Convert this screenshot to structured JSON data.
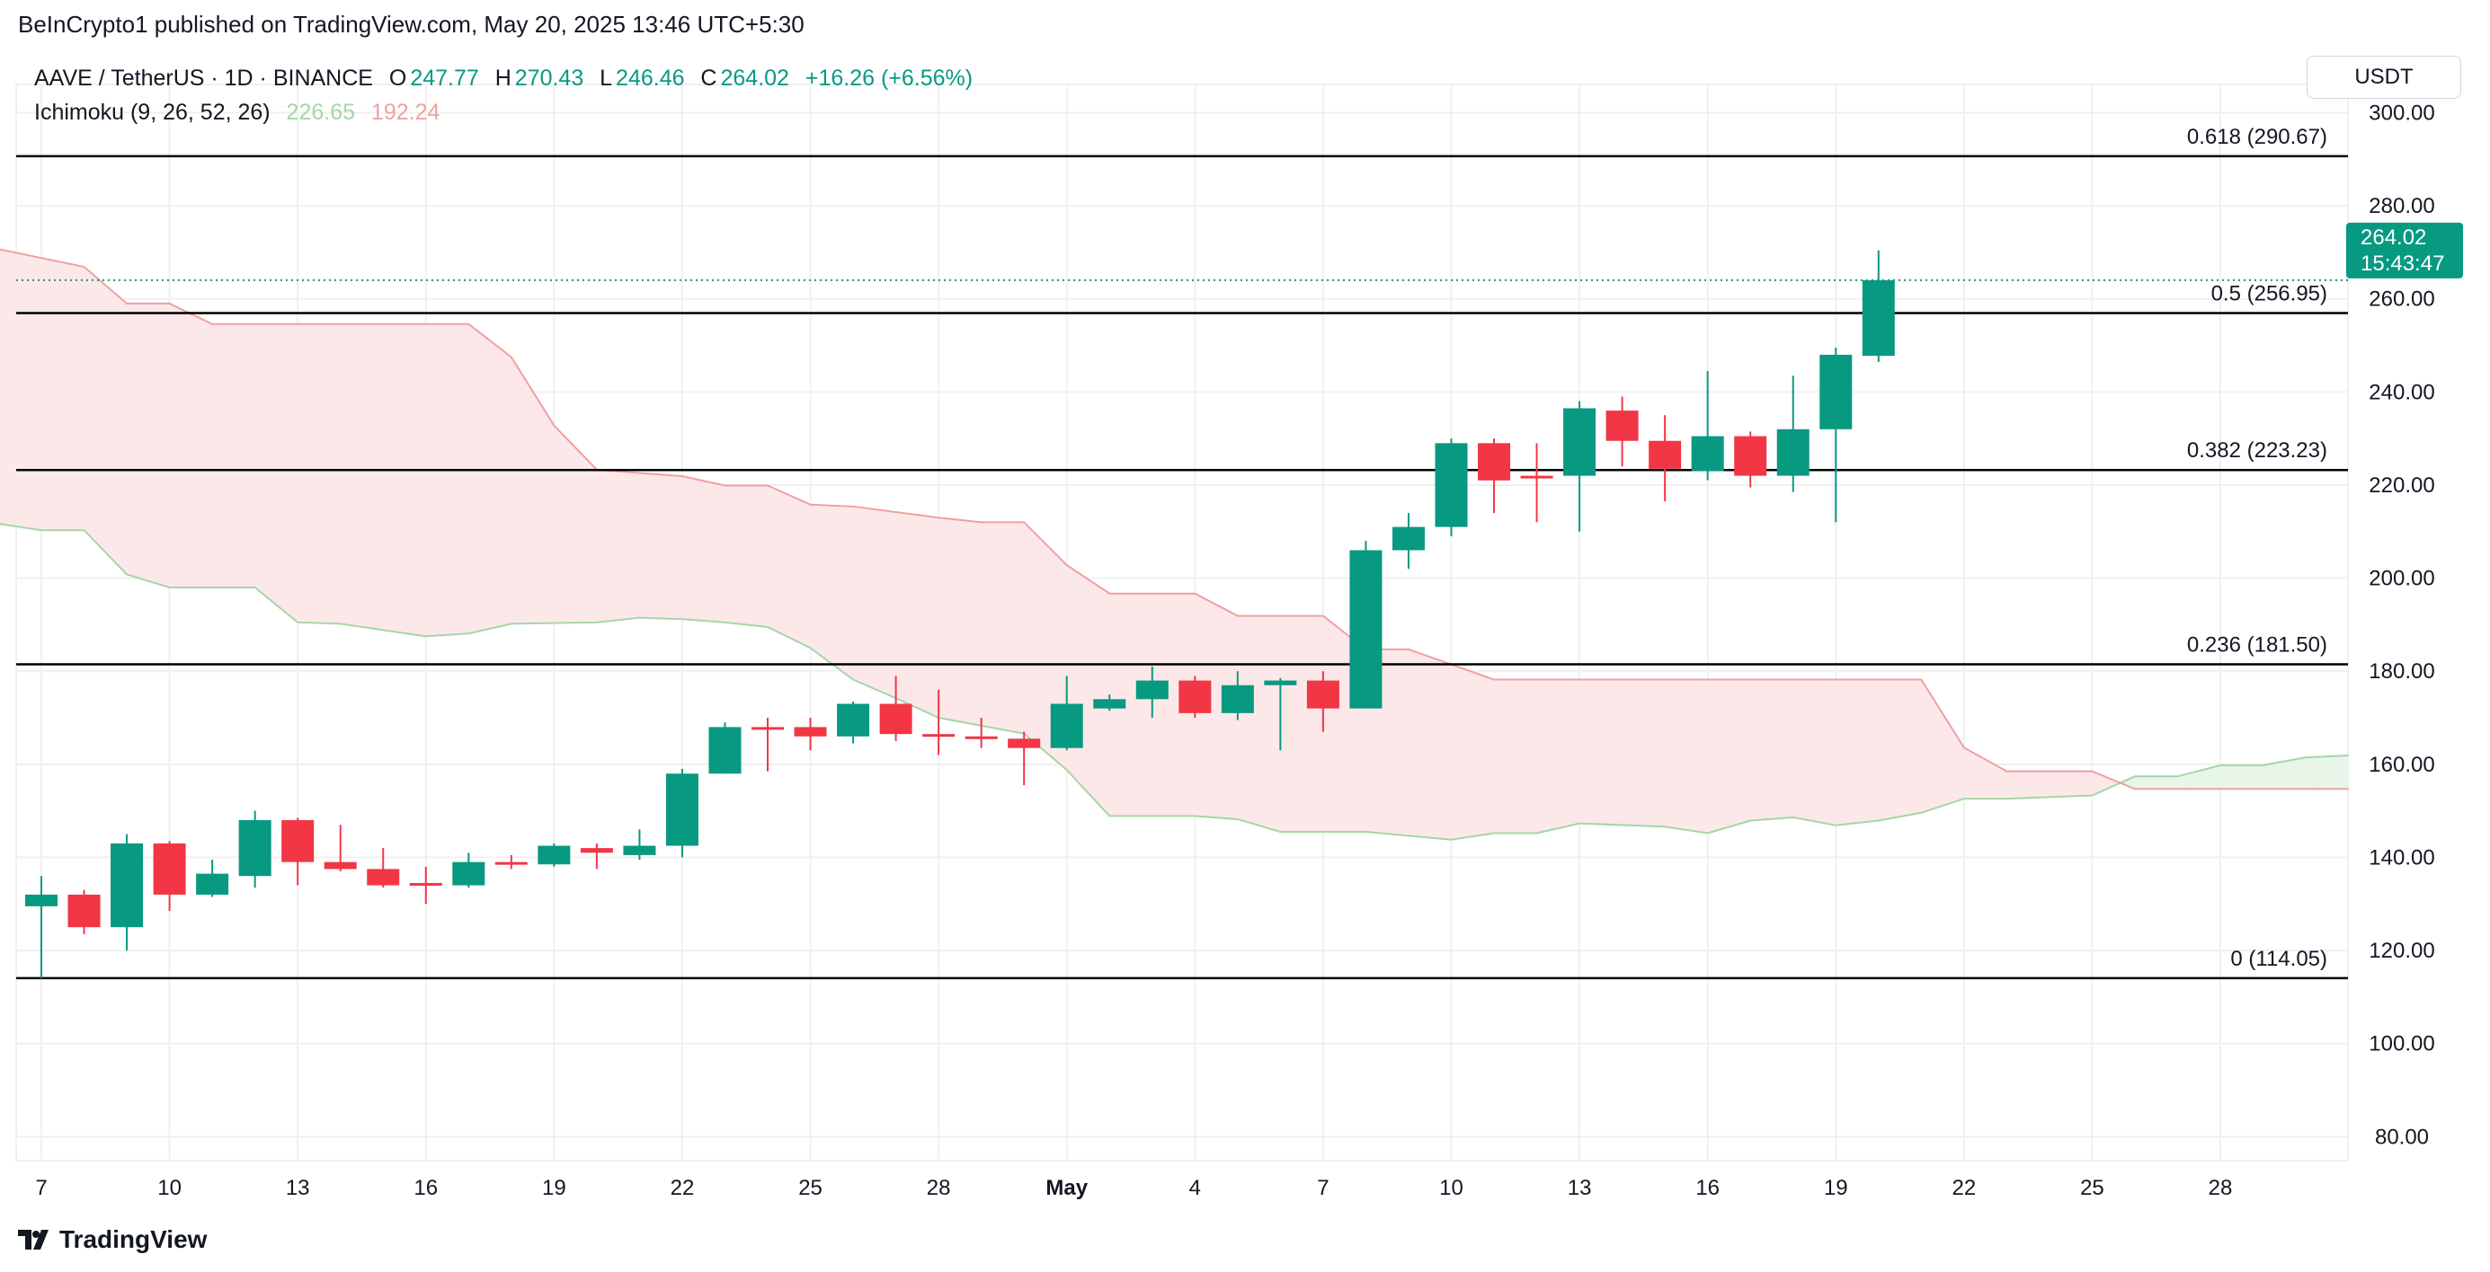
{
  "header": {
    "published": "BeInCrypto1 published on TradingView.com, May 20, 2025 13:46 UTC+5:30",
    "symbol": "AAVE / TetherUS · 1D · BINANCE",
    "o_label": "O",
    "o": "247.77",
    "h_label": "H",
    "h": "270.43",
    "l_label": "L",
    "l": "246.46",
    "c_label": "C",
    "c": "264.02",
    "change": "+16.26 (+6.56%)",
    "indicator": "Ichimoku (9, 26, 52, 26)",
    "ind_a": "226.65",
    "ind_b": "192.24"
  },
  "currency_button": "USDT",
  "price_label": {
    "price": "264.02",
    "countdown": "15:43:47"
  },
  "logo_text": "TradingView",
  "colors": {
    "up": "#089981",
    "down": "#f23645",
    "span_a": "#a5d6a7",
    "span_b": "#f0a0a0",
    "cloud_red": "#fce8e8",
    "cloud_green": "#e8f5e9",
    "grid": "#f0f0f0"
  },
  "chart_data": {
    "type": "candlestick",
    "ylim": [
      72,
      305
    ],
    "y_ticks": [
      "80.00",
      "100.00",
      "120.00",
      "140.00",
      "160.00",
      "180.00",
      "200.00",
      "220.00",
      "240.00",
      "260.00",
      "280.00",
      "300.00"
    ],
    "x_ticks": [
      {
        "date": "2025-04-07",
        "label": "7"
      },
      {
        "date": "2025-04-10",
        "label": "10"
      },
      {
        "date": "2025-04-13",
        "label": "13"
      },
      {
        "date": "2025-04-16",
        "label": "16"
      },
      {
        "date": "2025-04-19",
        "label": "19"
      },
      {
        "date": "2025-04-22",
        "label": "22"
      },
      {
        "date": "2025-04-25",
        "label": "25"
      },
      {
        "date": "2025-04-28",
        "label": "28"
      },
      {
        "date": "2025-05-01",
        "label": "May"
      },
      {
        "date": "2025-05-04",
        "label": "4"
      },
      {
        "date": "2025-05-07",
        "label": "7"
      },
      {
        "date": "2025-05-10",
        "label": "10"
      },
      {
        "date": "2025-05-13",
        "label": "13"
      },
      {
        "date": "2025-05-16",
        "label": "16"
      },
      {
        "date": "2025-05-19",
        "label": "19"
      },
      {
        "date": "2025-05-22",
        "label": "22"
      },
      {
        "date": "2025-05-25",
        "label": "25"
      },
      {
        "date": "2025-05-28",
        "label": "28"
      }
    ],
    "candles_columns": [
      "date",
      "open",
      "high",
      "low",
      "close"
    ],
    "candles": [
      [
        "2025-04-07",
        129.5,
        136,
        114,
        132
      ],
      [
        "2025-04-08",
        132,
        133,
        123.5,
        125
      ],
      [
        "2025-04-09",
        125,
        145,
        120,
        143
      ],
      [
        "2025-04-10",
        143,
        143.5,
        128.5,
        132
      ],
      [
        "2025-04-11",
        132,
        139.5,
        131.5,
        136.5
      ],
      [
        "2025-04-12",
        136,
        150,
        133.5,
        148
      ],
      [
        "2025-04-13",
        148,
        148.5,
        134,
        139
      ],
      [
        "2025-04-14",
        139,
        147,
        137,
        137.5
      ],
      [
        "2025-04-15",
        137.5,
        142,
        133.5,
        134
      ],
      [
        "2025-04-16",
        134.5,
        138,
        130,
        134
      ],
      [
        "2025-04-17",
        134,
        141,
        133.5,
        139
      ],
      [
        "2025-04-18",
        139,
        140.5,
        137.5,
        138.5
      ],
      [
        "2025-04-19",
        138.5,
        143,
        138,
        142.5
      ],
      [
        "2025-04-20",
        142,
        143,
        137.5,
        141
      ],
      [
        "2025-04-21",
        140.5,
        146,
        139.5,
        142.5
      ],
      [
        "2025-04-22",
        142.5,
        159,
        140,
        158
      ],
      [
        "2025-04-23",
        158,
        169,
        158,
        168
      ],
      [
        "2025-04-24",
        168,
        170,
        158.5,
        167.5
      ],
      [
        "2025-04-25",
        168,
        170,
        163,
        166
      ],
      [
        "2025-04-26",
        166,
        173.5,
        164.5,
        173
      ],
      [
        "2025-04-27",
        173,
        179,
        165,
        166.5
      ],
      [
        "2025-04-28",
        166.5,
        176,
        162,
        166
      ],
      [
        "2025-04-29",
        166,
        170,
        163.5,
        165.5
      ],
      [
        "2025-04-30",
        165.5,
        167,
        155.5,
        163.5
      ],
      [
        "2025-05-01",
        163.5,
        179,
        163,
        173
      ],
      [
        "2025-05-02",
        172,
        175,
        171.5,
        174
      ],
      [
        "2025-05-03",
        174,
        181,
        170,
        178
      ],
      [
        "2025-05-04",
        178,
        179,
        170,
        171
      ],
      [
        "2025-05-05",
        171,
        180,
        169.5,
        177
      ],
      [
        "2025-05-06",
        177,
        178.5,
        163,
        178
      ],
      [
        "2025-05-07",
        178,
        180,
        167,
        172
      ],
      [
        "2025-05-08",
        172,
        208,
        172,
        206
      ],
      [
        "2025-05-09",
        206,
        214,
        202,
        211
      ],
      [
        "2025-05-10",
        211,
        230,
        209,
        229
      ],
      [
        "2025-05-11",
        229,
        230,
        214,
        221
      ],
      [
        "2025-05-12",
        222,
        229,
        212,
        221.5
      ],
      [
        "2025-05-13",
        222,
        238,
        210,
        236.5
      ],
      [
        "2025-05-14",
        236,
        239,
        224,
        229.5
      ],
      [
        "2025-05-15",
        229.5,
        235,
        216.5,
        223.5
      ],
      [
        "2025-05-16",
        223,
        244.5,
        221,
        230.5
      ],
      [
        "2025-05-17",
        230.5,
        231.5,
        219.5,
        222
      ],
      [
        "2025-05-18",
        222,
        243.5,
        218.5,
        232
      ],
      [
        "2025-05-19",
        232,
        249.5,
        212,
        248
      ],
      [
        "2025-05-20",
        247.77,
        270.43,
        246.46,
        264.02
      ]
    ],
    "ichimoku": {
      "span_a": [
        [
          "2025-04-06",
          211.7
        ],
        [
          "2025-04-07",
          210.3
        ],
        [
          "2025-04-08",
          210.3
        ],
        [
          "2025-04-09",
          200.8
        ],
        [
          "2025-04-10",
          198
        ],
        [
          "2025-04-12",
          198
        ],
        [
          "2025-04-13",
          190.5
        ],
        [
          "2025-04-14",
          190.2
        ],
        [
          "2025-04-16",
          187.5
        ],
        [
          "2025-04-17",
          188.1
        ],
        [
          "2025-04-18",
          190.2
        ],
        [
          "2025-04-20",
          190.5
        ],
        [
          "2025-04-21",
          191.5
        ],
        [
          "2025-04-22",
          191.2
        ],
        [
          "2025-04-23",
          190.5
        ],
        [
          "2025-04-24",
          189.5
        ],
        [
          "2025-04-25",
          185
        ],
        [
          "2025-04-26",
          178.2
        ],
        [
          "2025-04-27",
          174.2
        ],
        [
          "2025-04-28",
          170
        ],
        [
          "2025-04-30",
          166.6
        ],
        [
          "2025-05-01",
          158.8
        ],
        [
          "2025-05-02",
          148.9
        ],
        [
          "2025-05-04",
          148.9
        ],
        [
          "2025-05-05",
          148.2
        ],
        [
          "2025-05-06",
          145.5
        ],
        [
          "2025-05-08",
          145.5
        ],
        [
          "2025-05-10",
          143.8
        ],
        [
          "2025-05-11",
          145.2
        ],
        [
          "2025-05-12",
          145.2
        ],
        [
          "2025-05-13",
          147.3
        ],
        [
          "2025-05-15",
          146.6
        ],
        [
          "2025-05-16",
          145.2
        ],
        [
          "2025-05-17",
          147.9
        ],
        [
          "2025-05-18",
          148.6
        ],
        [
          "2025-05-19",
          146.9
        ],
        [
          "2025-05-20",
          147.9
        ],
        [
          "2025-05-21",
          149.6
        ],
        [
          "2025-05-22",
          152.6
        ],
        [
          "2025-05-23",
          152.6
        ],
        [
          "2025-05-25",
          153.3
        ],
        [
          "2025-05-26",
          157.4
        ],
        [
          "2025-05-27",
          157.4
        ],
        [
          "2025-05-28",
          159.8
        ],
        [
          "2025-05-29",
          159.8
        ],
        [
          "2025-05-30",
          161.5
        ],
        [
          "2025-05-31",
          161.9
        ]
      ],
      "span_b": [
        [
          "2025-04-06",
          270.7
        ],
        [
          "2025-04-08",
          266.9
        ],
        [
          "2025-04-09",
          259
        ],
        [
          "2025-04-10",
          259
        ],
        [
          "2025-04-11",
          254.6
        ],
        [
          "2025-04-17",
          254.6
        ],
        [
          "2025-04-18",
          247.5
        ],
        [
          "2025-04-19",
          232.8
        ],
        [
          "2025-04-20",
          223.3
        ],
        [
          "2025-04-22",
          221.9
        ],
        [
          "2025-04-23",
          219.9
        ],
        [
          "2025-04-24",
          219.9
        ],
        [
          "2025-04-25",
          215.8
        ],
        [
          "2025-04-26",
          215.4
        ],
        [
          "2025-04-28",
          213
        ],
        [
          "2025-04-29",
          212
        ],
        [
          "2025-04-30",
          212
        ],
        [
          "2025-05-01",
          202.8
        ],
        [
          "2025-05-02",
          196.7
        ],
        [
          "2025-05-04",
          196.7
        ],
        [
          "2025-05-05",
          191.9
        ],
        [
          "2025-05-07",
          191.9
        ],
        [
          "2025-05-08",
          184.7
        ],
        [
          "2025-05-09",
          184.7
        ],
        [
          "2025-05-11",
          178.2
        ],
        [
          "2025-05-21",
          178.2
        ],
        [
          "2025-05-22",
          163.6
        ],
        [
          "2025-05-23",
          158.5
        ],
        [
          "2025-05-25",
          158.5
        ],
        [
          "2025-05-26",
          154.7
        ],
        [
          "2025-05-31",
          154.7
        ]
      ]
    },
    "fib_levels": [
      {
        "label": "0.618 (290.67)",
        "value": 290.67
      },
      {
        "label": "0.5 (256.95)",
        "value": 256.95
      },
      {
        "label": "0.382 (223.23)",
        "value": 223.23
      },
      {
        "label": "0.236 (181.50)",
        "value": 181.5
      },
      {
        "label": "0 (114.05)",
        "value": 114.05
      }
    ],
    "last_price": 264.02
  }
}
